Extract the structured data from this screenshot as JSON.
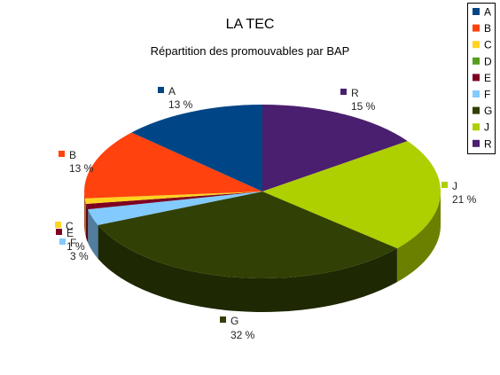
{
  "chart_data": {
    "type": "pie",
    "title": "LA TEC",
    "subtitle": "Répartition des promouvables par BAP",
    "three_d": true,
    "legend_position": "top-right",
    "slices": [
      {
        "name": "A",
        "value": 13,
        "value_label": "13 %",
        "color": "#004586"
      },
      {
        "name": "B",
        "value": 13,
        "value_label": "13 %",
        "color": "#ff420e"
      },
      {
        "name": "C",
        "value": 1,
        "value_label": "",
        "color": "#ffd320"
      },
      {
        "name": "D",
        "value": 0,
        "value_label": "",
        "color": "#579d1c"
      },
      {
        "name": "E",
        "value": 1,
        "value_label": "1 %",
        "color": "#7e0021"
      },
      {
        "name": "F",
        "value": 3,
        "value_label": "3 %",
        "color": "#83caff"
      },
      {
        "name": "G",
        "value": 32,
        "value_label": "32 %",
        "color": "#314004"
      },
      {
        "name": "J",
        "value": 21,
        "value_label": "21 %",
        "color": "#aecf00"
      },
      {
        "name": "R",
        "value": 15,
        "value_label": "15 %",
        "color": "#4b1f6f"
      }
    ],
    "pie_order": [
      "R",
      "J",
      "G",
      "F",
      "E",
      "D",
      "C",
      "B",
      "A"
    ]
  }
}
